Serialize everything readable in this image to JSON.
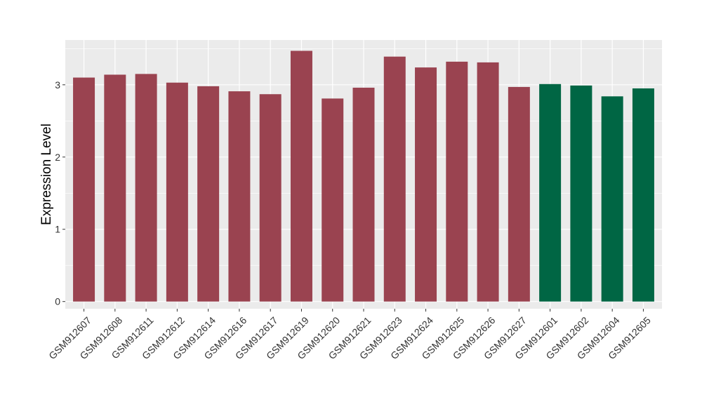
{
  "chart_data": {
    "type": "bar",
    "title": "",
    "xlabel": "",
    "ylabel": "Expression Level",
    "ylim": [
      -0.1,
      3.62
    ],
    "yticks": [
      0,
      1,
      2,
      3
    ],
    "grid": true,
    "legend": "none",
    "categories": [
      "GSM912607",
      "GSM912608",
      "GSM912611",
      "GSM912612",
      "GSM912614",
      "GSM912616",
      "GSM912617",
      "GSM912619",
      "GSM912620",
      "GSM912621",
      "GSM912623",
      "GSM912624",
      "GSM912625",
      "GSM912626",
      "GSM912627",
      "GSM912601",
      "GSM912602",
      "GSM912604",
      "GSM912605"
    ],
    "values": [
      3.1,
      3.14,
      3.15,
      3.03,
      2.98,
      2.91,
      2.87,
      3.47,
      2.81,
      2.96,
      3.39,
      3.24,
      3.32,
      3.31,
      2.97,
      3.01,
      2.99,
      2.84,
      2.95
    ],
    "bar_colors": [
      "#9a4350",
      "#9a4350",
      "#9a4350",
      "#9a4350",
      "#9a4350",
      "#9a4350",
      "#9a4350",
      "#9a4350",
      "#9a4350",
      "#9a4350",
      "#9a4350",
      "#9a4350",
      "#9a4350",
      "#9a4350",
      "#9a4350",
      "#006644",
      "#006644",
      "#006644",
      "#006644"
    ],
    "panel_background": "#ebebeb",
    "grid_color": "#ffffff"
  }
}
